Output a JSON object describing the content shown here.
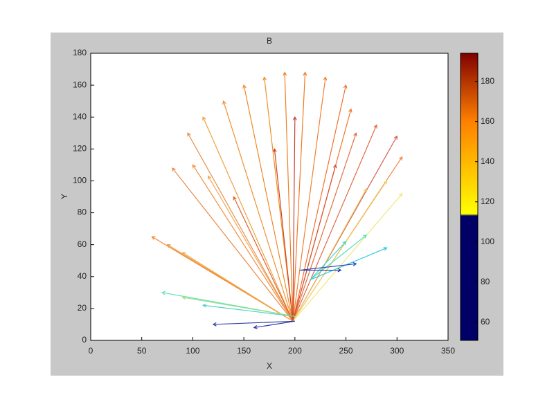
{
  "chart_data": {
    "type": "quiver",
    "title": "B",
    "x_label": "X",
    "y_label": "Y",
    "xlim": [
      0,
      350
    ],
    "xticks": [
      0,
      50,
      100,
      150,
      200,
      250,
      300,
      350
    ],
    "ylim": [
      0,
      180
    ],
    "yticks": [
      0,
      20,
      40,
      60,
      80,
      100,
      120,
      140,
      160,
      180
    ],
    "x": [
      198,
      198,
      198,
      198,
      198,
      198,
      198,
      198,
      198,
      198,
      198,
      198,
      198,
      198,
      198,
      198,
      198,
      198,
      198,
      198,
      198,
      198,
      198,
      198,
      198,
      198,
      198,
      215,
      215,
      215,
      205,
      205,
      200,
      200,
      200,
      200,
      200
    ],
    "y": [
      12,
      12,
      12,
      12,
      12,
      12,
      12,
      12,
      12,
      12,
      12,
      12,
      12,
      12,
      12,
      12,
      12,
      12,
      12,
      12,
      12,
      12,
      12,
      12,
      12,
      12,
      12,
      38,
      38,
      38,
      44,
      44,
      15,
      15,
      15,
      12,
      12
    ],
    "u": [
      -138,
      -123,
      -108,
      -118,
      -98,
      -83,
      -103,
      -88,
      -68,
      -48,
      -28,
      -8,
      12,
      32,
      52,
      57,
      62,
      82,
      102,
      107,
      72,
      92,
      107,
      -18,
      2,
      -58,
      42,
      35,
      55,
      75,
      55,
      40,
      -130,
      -110,
      -90,
      -80,
      -40
    ],
    "v": [
      53,
      48,
      43,
      96,
      98,
      91,
      118,
      128,
      138,
      148,
      153,
      156,
      156,
      153,
      148,
      133,
      118,
      123,
      116,
      103,
      83,
      88,
      80,
      108,
      128,
      78,
      98,
      24,
      28,
      20,
      4,
      0,
      15,
      12,
      7,
      -2,
      -4
    ],
    "c": [
      168,
      165,
      160,
      170,
      168,
      162,
      168,
      165,
      170,
      172,
      170,
      174,
      178,
      174,
      178,
      176,
      182,
      186,
      188,
      170,
      150,
      145,
      140,
      190,
      188,
      180,
      184,
      70,
      72,
      68,
      56,
      55,
      75,
      78,
      72,
      55,
      54
    ],
    "colors": [
      "#f08838",
      "#f09838",
      "#f0a848",
      "#e88848",
      "#f09040",
      "#f0a858",
      "#e89048",
      "#f0a040",
      "#f09030",
      "#f08828",
      "#f09020",
      "#f08020",
      "#f07820",
      "#f08030",
      "#f07030",
      "#f07830",
      "#e07040",
      "#e06848",
      "#d06050",
      "#f08848",
      "#f0c868",
      "#f0d870",
      "#f0e878",
      "#d04020",
      "#c84030",
      "#e06030",
      "#d85030",
      "#40d8d0",
      "#50e0c8",
      "#30c8e0",
      "#2040c0",
      "#1838b0",
      "#60e0c0",
      "#a0e080",
      "#50d0d0",
      "#3040a0",
      "#2838a0"
    ],
    "clim": [
      51,
      194
    ],
    "cticks": [
      60,
      80,
      100,
      120,
      140,
      160,
      180
    ],
    "colormap": [
      {
        "value": 51,
        "color": "#000066"
      },
      {
        "value": 113,
        "color": "#000066"
      },
      {
        "value": 114,
        "color": "#ffff00"
      },
      {
        "value": 160,
        "color": "#ff8000"
      },
      {
        "value": 194,
        "color": "#800000"
      }
    ]
  }
}
